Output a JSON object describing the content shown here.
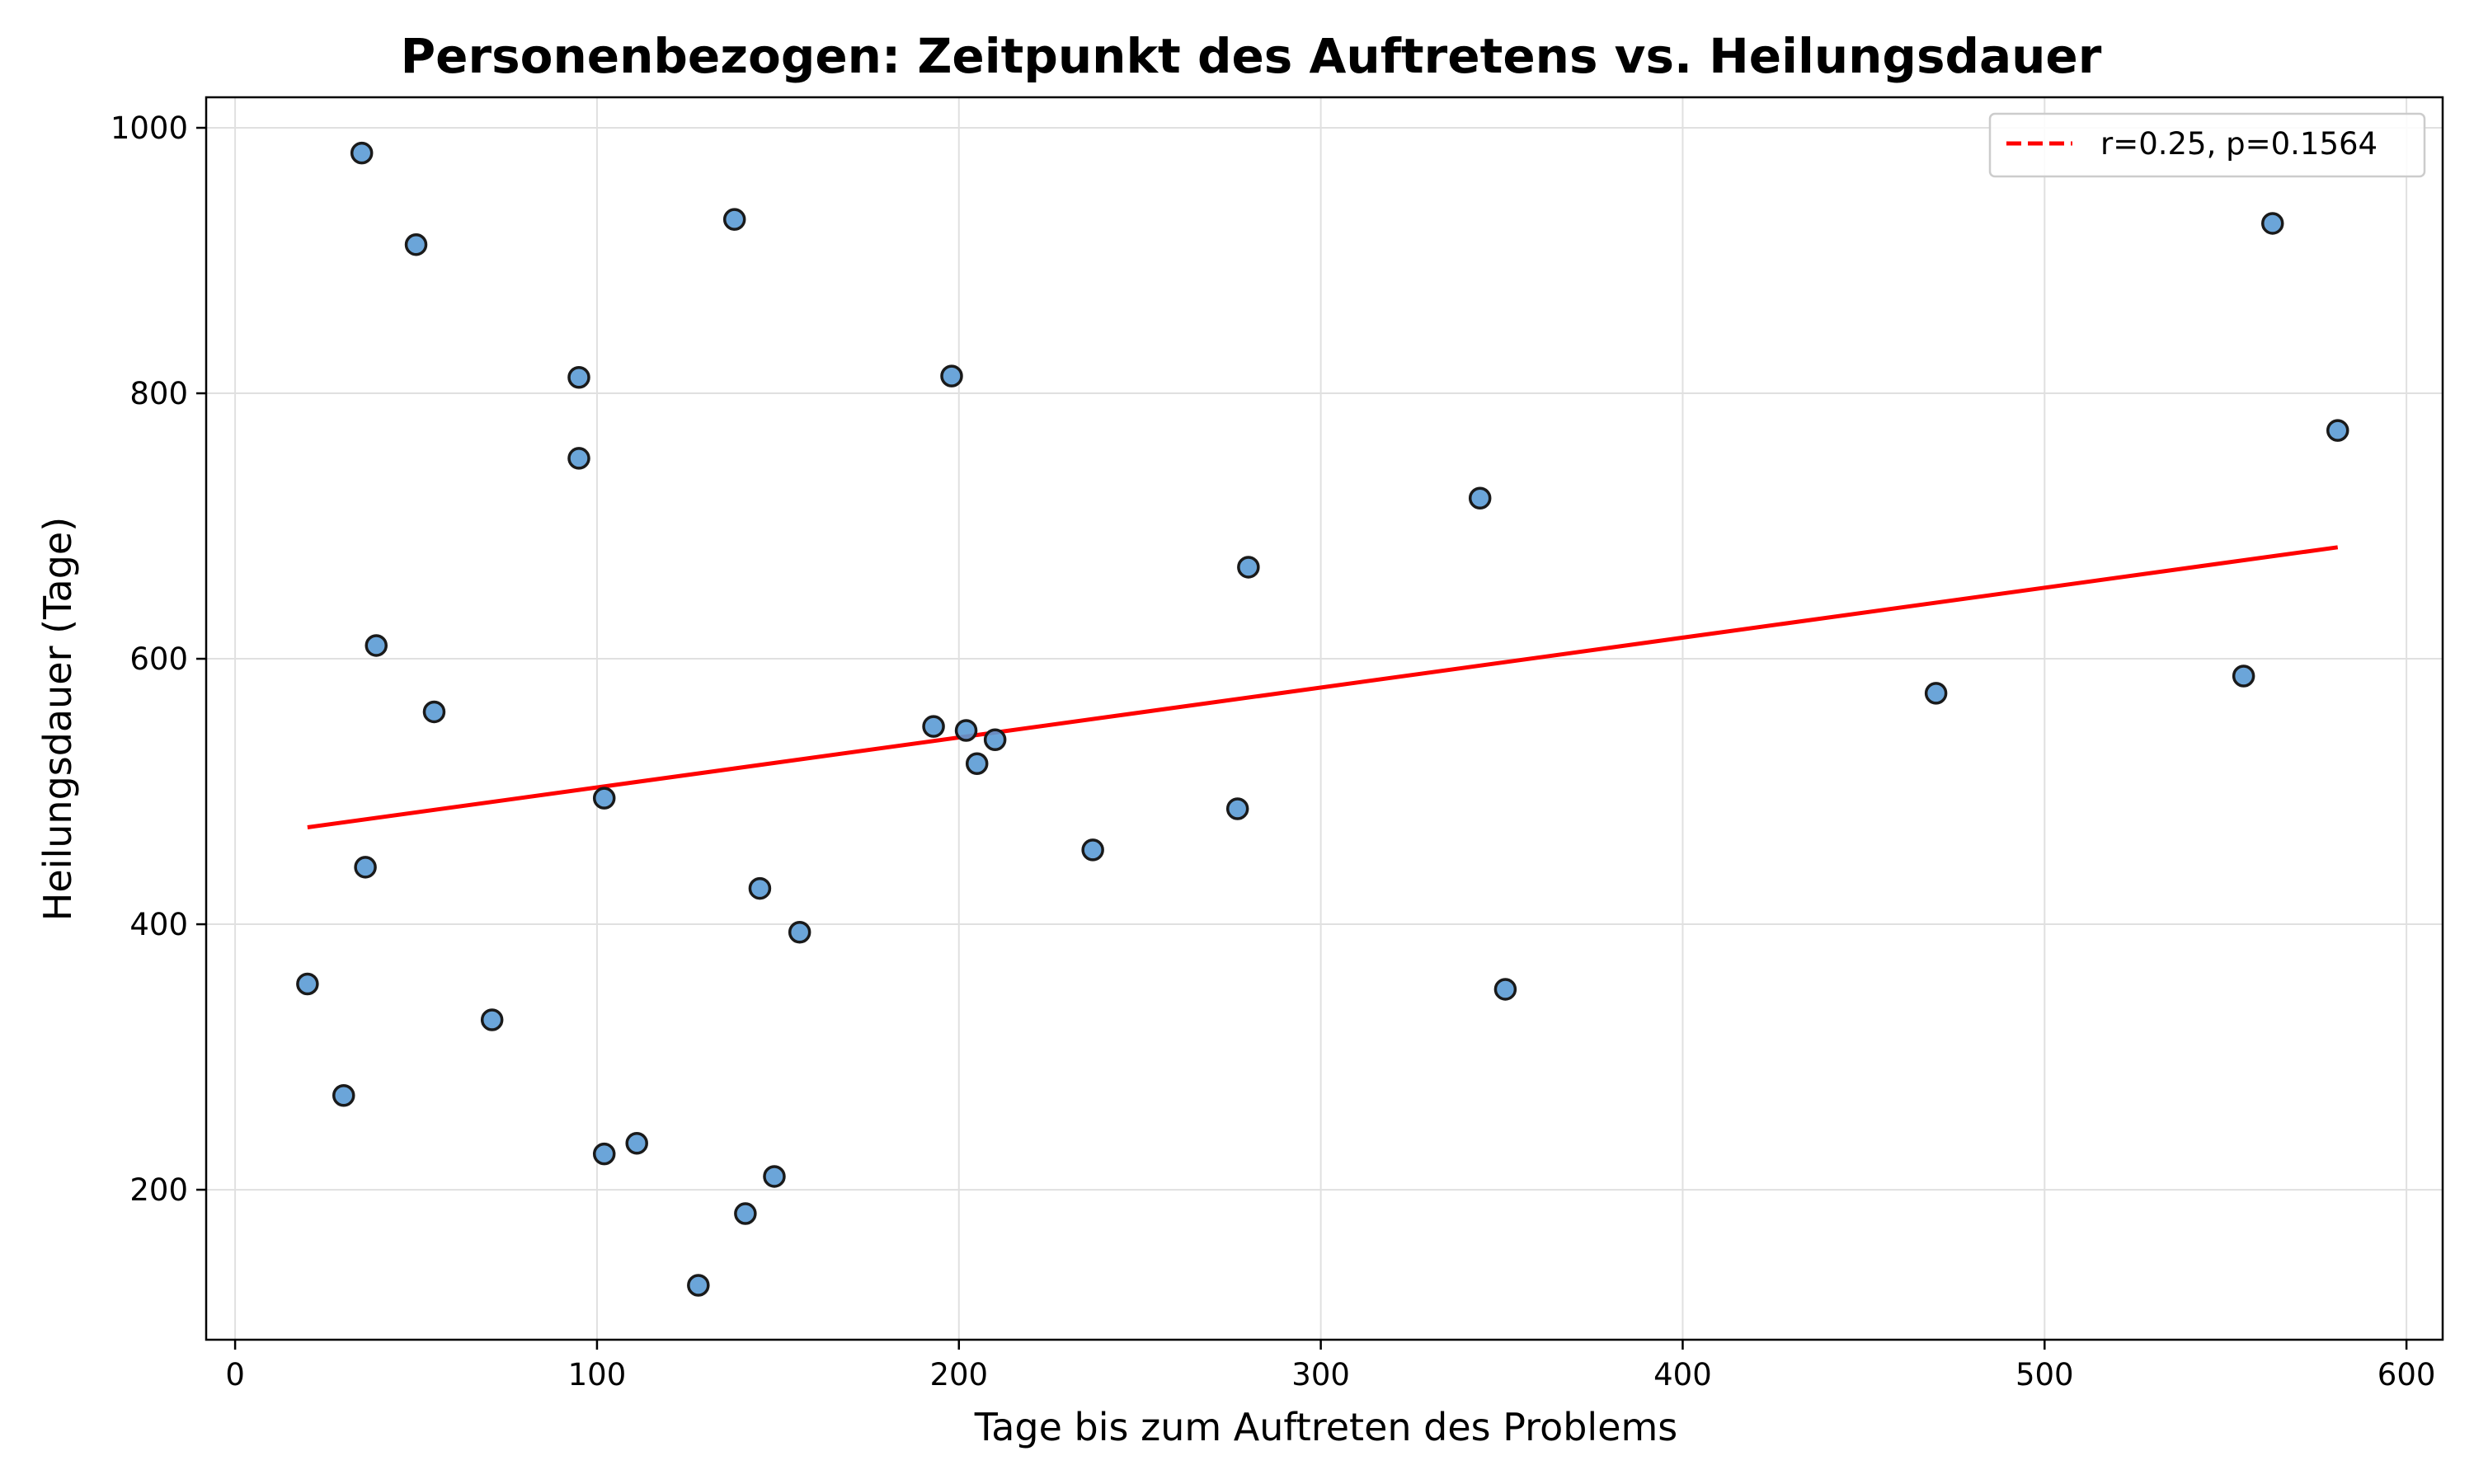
{
  "chart_data": {
    "type": "scatter",
    "title": "Personenbezogen: Zeitpunkt des Auftretens vs. Heilungsdauer",
    "xlabel": "Tage bis zum Auftreten des Problems",
    "ylabel": "Heilungsdauer (Tage)",
    "xlim": [
      -8,
      610
    ],
    "ylim": [
      87,
      1023
    ],
    "xticks": [
      0,
      100,
      200,
      300,
      400,
      500,
      600
    ],
    "yticks": [
      200,
      400,
      600,
      800,
      1000
    ],
    "grid": true,
    "legend": {
      "placement": "top-right",
      "entries": [
        "r=0.25, p=0.1564"
      ]
    },
    "series": [
      {
        "color": "#5b9bd5",
        "points": [
          {
            "x": 35,
            "y": 981
          },
          {
            "x": 50,
            "y": 912
          },
          {
            "x": 138,
            "y": 931
          },
          {
            "x": 563,
            "y": 928
          },
          {
            "x": 95,
            "y": 812
          },
          {
            "x": 198,
            "y": 813
          },
          {
            "x": 581,
            "y": 772
          },
          {
            "x": 95,
            "y": 751
          },
          {
            "x": 344,
            "y": 721
          },
          {
            "x": 280,
            "y": 669
          },
          {
            "x": 39,
            "y": 610
          },
          {
            "x": 555,
            "y": 587
          },
          {
            "x": 470,
            "y": 574
          },
          {
            "x": 55,
            "y": 560
          },
          {
            "x": 193,
            "y": 549
          },
          {
            "x": 202,
            "y": 546
          },
          {
            "x": 210,
            "y": 539
          },
          {
            "x": 205,
            "y": 521
          },
          {
            "x": 102,
            "y": 495
          },
          {
            "x": 277,
            "y": 487
          },
          {
            "x": 237,
            "y": 456
          },
          {
            "x": 36,
            "y": 443
          },
          {
            "x": 145,
            "y": 427
          },
          {
            "x": 156,
            "y": 394
          },
          {
            "x": 20,
            "y": 355
          },
          {
            "x": 351,
            "y": 351
          },
          {
            "x": 71,
            "y": 328
          },
          {
            "x": 30,
            "y": 271
          },
          {
            "x": 111,
            "y": 235
          },
          {
            "x": 102,
            "y": 227
          },
          {
            "x": 149,
            "y": 210
          },
          {
            "x": 141,
            "y": 182
          },
          {
            "x": 128,
            "y": 128
          }
        ]
      }
    ],
    "fit_line": {
      "name": "r=0.25, p=0.1564",
      "color": "#ff0000",
      "x": [
        20,
        581
      ],
      "y": [
        473,
        684
      ]
    }
  }
}
